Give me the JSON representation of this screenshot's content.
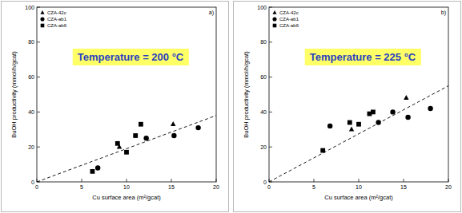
{
  "chart_data": [
    {
      "type": "scatter",
      "annotation": "a)",
      "title": "Temperature = 200 °C",
      "x_label": "Cu surface area (m²/gcat)",
      "y_label": "BuOH productivity (mmol/h/gcat)",
      "xlim": [
        0,
        20
      ],
      "ylim": [
        0,
        100
      ],
      "xticks": [
        0,
        5,
        10,
        15,
        20
      ],
      "yticks": [
        0,
        20,
        40,
        60,
        80,
        100
      ],
      "grid": false,
      "legend": "upper left",
      "series": [
        {
          "name": "CZA-42c",
          "color": "#000000",
          "marker": "triangle",
          "x": [
            9.2,
            15.2
          ],
          "values": [
            20,
            33
          ]
        },
        {
          "name": "CZA-ab1",
          "color": "#000000",
          "marker": "circle",
          "x": [
            6.8,
            12.2,
            15.3,
            18.0
          ],
          "values": [
            8,
            25,
            26.5,
            31
          ]
        },
        {
          "name": "CZA-ab6",
          "color": "#000000",
          "marker": "square",
          "x": [
            6.2,
            9.0,
            10.0,
            11.0,
            11.6
          ],
          "values": [
            6,
            22,
            17,
            26.5,
            33
          ]
        },
        {
          "type": "line",
          "line_style": "dashed",
          "color": "#000000",
          "x": [
            0,
            20
          ],
          "values": [
            0,
            38
          ]
        }
      ]
    },
    {
      "type": "scatter",
      "annotation": "b)",
      "title": "Temperature = 225 °C",
      "x_label": "Cu surface area (m²/gcat)",
      "y_label": "BuOH productivity (mmol/h/gcat)",
      "xlim": [
        0,
        20
      ],
      "ylim": [
        0,
        100
      ],
      "xticks": [
        0,
        5,
        10,
        15,
        20
      ],
      "yticks": [
        0,
        20,
        40,
        60,
        80,
        100
      ],
      "grid": false,
      "legend": "upper left",
      "series": [
        {
          "name": "CZA-42c",
          "color": "#000000",
          "marker": "triangle",
          "x": [
            9.2,
            15.3
          ],
          "values": [
            30,
            48
          ]
        },
        {
          "name": "CZA-ab1",
          "color": "#000000",
          "marker": "circle",
          "x": [
            6.8,
            12.2,
            13.8,
            15.5,
            18.0
          ],
          "values": [
            32,
            34,
            40,
            37,
            42
          ]
        },
        {
          "name": "CZA-ab6",
          "color": "#000000",
          "marker": "square",
          "x": [
            6.0,
            9.0,
            10.0,
            11.2,
            11.6
          ],
          "values": [
            18,
            34,
            33,
            39,
            40
          ]
        },
        {
          "type": "line",
          "line_style": "dashed",
          "color": "#000000",
          "x": [
            0,
            20
          ],
          "values": [
            0,
            55
          ]
        }
      ]
    }
  ]
}
